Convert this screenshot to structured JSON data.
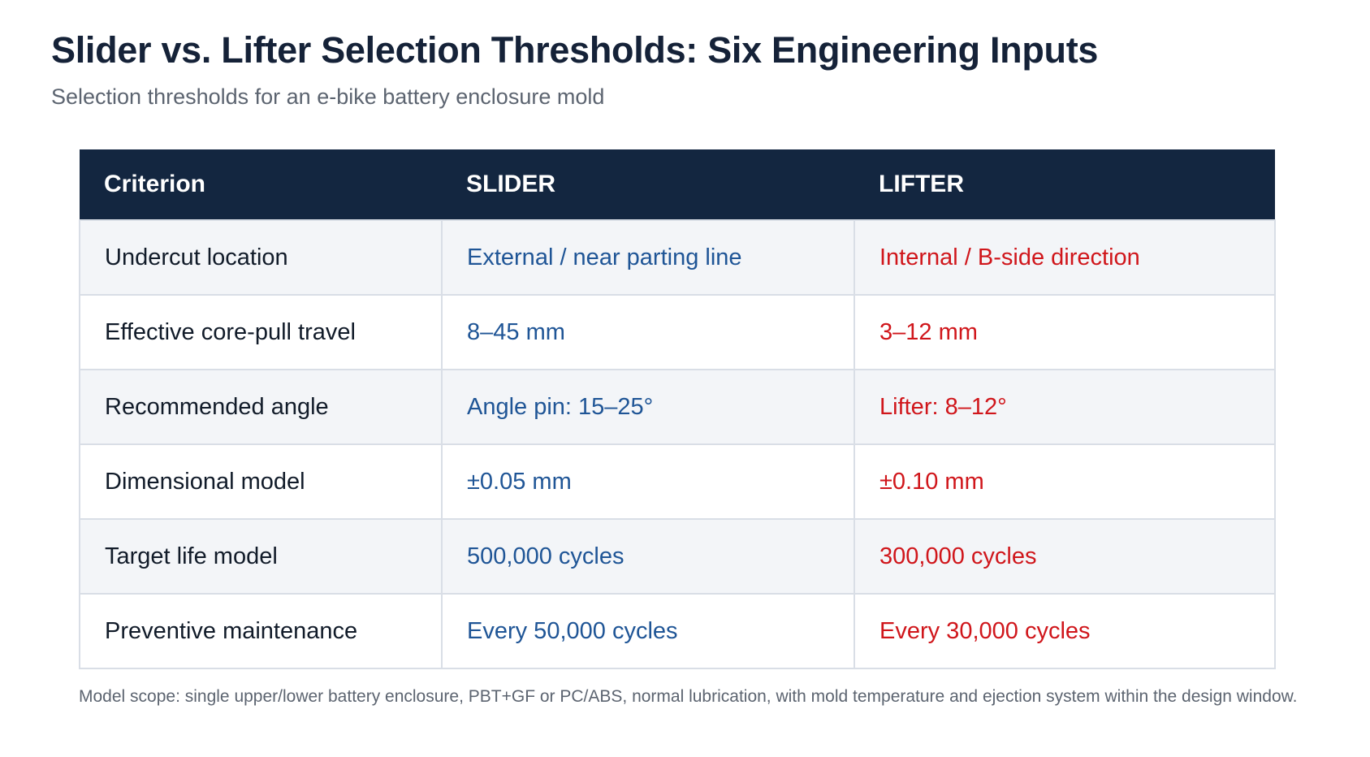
{
  "title": "Slider vs. Lifter Selection Thresholds: Six Engineering Inputs",
  "subtitle": "Selection thresholds for an e-bike battery enclosure mold",
  "table": {
    "headers": [
      "Criterion",
      "SLIDER",
      "LIFTER"
    ],
    "rows": [
      [
        "Undercut location",
        "External / near parting line",
        "Internal / B-side direction"
      ],
      [
        "Effective core-pull travel",
        "8–45 mm",
        "3–12 mm"
      ],
      [
        "Recommended angle",
        "Angle pin: 15–25°",
        "Lifter: 8–12°"
      ],
      [
        "Dimensional model",
        "±0.05 mm",
        "±0.10 mm"
      ],
      [
        "Target life model",
        "500,000 cycles",
        "300,000 cycles"
      ],
      [
        "Preventive maintenance",
        "Every 50,000 cycles",
        "Every 30,000 cycles"
      ]
    ]
  },
  "footnote": "Model scope: single upper/lower battery enclosure, PBT+GF or PC/ABS, normal lubrication, with mold temperature and ejection system within the design window.",
  "colors": {
    "header_bg": "#132640",
    "slider_text": "#1f5596",
    "lifter_text": "#d0161b"
  }
}
